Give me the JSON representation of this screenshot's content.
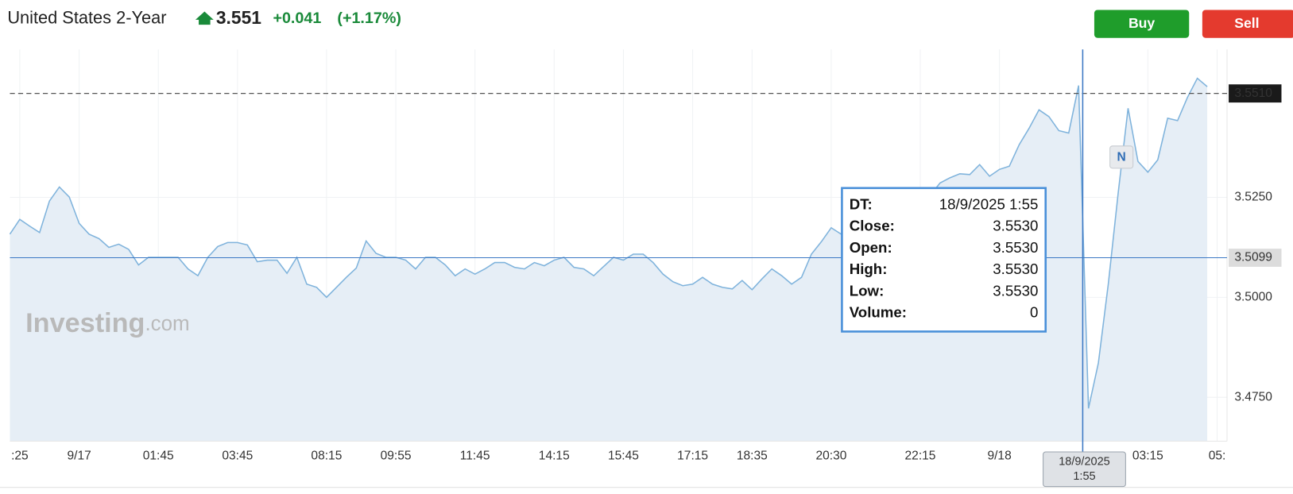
{
  "header": {
    "title": "United States 2-Year",
    "price": "3.551",
    "change": "+0.041",
    "change_percent": "(+1.17%)",
    "buttons": [
      "Buy",
      "Sell"
    ],
    "watermark": "Investing",
    "watermark_suffix": ".com",
    "marker": "N"
  },
  "chart_data": {
    "type": "area",
    "categories": [
      null,
      ":25",
      null,
      null,
      null,
      null,
      null,
      "9/17",
      null,
      null,
      null,
      null,
      null,
      null,
      null,
      "01:45",
      null,
      null,
      null,
      null,
      null,
      null,
      null,
      "03:45",
      null,
      null,
      null,
      null,
      null,
      null,
      null,
      null,
      "08:15",
      null,
      null,
      null,
      null,
      null,
      null,
      "09:55",
      null,
      null,
      null,
      null,
      null,
      null,
      null,
      "11:45",
      null,
      null,
      null,
      null,
      null,
      null,
      null,
      "14:15",
      null,
      null,
      null,
      null,
      null,
      null,
      "15:45",
      null,
      null,
      null,
      null,
      null,
      null,
      "17:15",
      null,
      null,
      null,
      null,
      null,
      "18:35",
      null,
      null,
      null,
      null,
      null,
      null,
      null,
      "20:30",
      null,
      null,
      null,
      null,
      null,
      null,
      null,
      null,
      "22:15",
      null,
      null,
      null,
      null,
      null,
      null,
      null,
      "9/18",
      null,
      null,
      null,
      null,
      null,
      null,
      null,
      null,
      null,
      null,
      null,
      null,
      null,
      null,
      "03:15",
      null,
      null,
      null,
      null,
      null,
      null,
      "05:"
    ],
    "values": [
      3.5158,
      3.5195,
      3.5178,
      3.5162,
      3.5241,
      3.5276,
      3.5251,
      3.5185,
      3.5158,
      3.5147,
      3.5125,
      3.5133,
      3.512,
      3.5081,
      3.51,
      3.51,
      3.51,
      3.51,
      3.5071,
      3.5054,
      3.51,
      3.5127,
      3.5137,
      3.5137,
      3.5131,
      3.5089,
      3.5093,
      3.5093,
      3.506,
      3.51,
      3.5033,
      3.5025,
      3.5,
      3.5025,
      3.505,
      3.5073,
      3.5141,
      3.511,
      3.51,
      3.51,
      3.5093,
      3.5071,
      3.51,
      3.51,
      3.5081,
      3.5054,
      3.5071,
      3.5058,
      3.5071,
      3.5087,
      3.5087,
      3.5075,
      3.5071,
      3.5087,
      3.5079,
      3.5093,
      3.51,
      3.5075,
      3.5071,
      3.5054,
      3.5077,
      3.51,
      3.5093,
      3.5108,
      3.5108,
      3.5087,
      3.5058,
      3.5039,
      3.5029,
      3.5033,
      3.505,
      3.5033,
      3.5025,
      3.5021,
      3.5042,
      3.5019,
      3.5046,
      3.5071,
      3.5054,
      3.5033,
      3.505,
      3.5108,
      3.5139,
      3.5174,
      3.5158,
      3.5178,
      3.5197,
      3.5193,
      3.5189,
      3.5185,
      3.5181,
      3.5189,
      3.5218,
      3.5255,
      3.5286,
      3.5299,
      3.5309,
      3.5307,
      3.5332,
      3.5303,
      3.532,
      3.5328,
      3.5382,
      3.5423,
      3.5469,
      3.5452,
      3.5417,
      3.5411,
      3.553,
      3.4722,
      3.4836,
      3.5033,
      3.5261,
      3.5473,
      3.534,
      3.5313,
      3.5344,
      3.5448,
      3.5442,
      3.55,
      3.5548,
      3.5527,
      null
    ],
    "color": "#7fb3dc",
    "fill": "#e6eef6",
    "ylim": [
      3.464,
      3.562
    ],
    "yticks": [
      {
        "value": 3.475,
        "label": "3.4750"
      },
      {
        "value": 3.5,
        "label": "3.5000"
      },
      {
        "value": 3.525,
        "label": "3.5250"
      }
    ],
    "grid": true,
    "reference_lines": [
      {
        "value": 3.551,
        "label": "3.5510",
        "style": "dashed"
      },
      {
        "value": 3.5099,
        "label": "3.5099",
        "style": "solid"
      }
    ],
    "crosshair_label": [
      "18/9/2025",
      "1:55"
    ],
    "tooltip": [
      {
        "label": "DT:",
        "value": "18/9/2025 1:55"
      },
      {
        "label": "Close:",
        "value": "3.5530"
      },
      {
        "label": "Open:",
        "value": "3.5530"
      },
      {
        "label": "High:",
        "value": "3.5530"
      },
      {
        "label": "Low:",
        "value": "3.5530"
      },
      {
        "label": "Volume:",
        "value": 0
      }
    ]
  }
}
